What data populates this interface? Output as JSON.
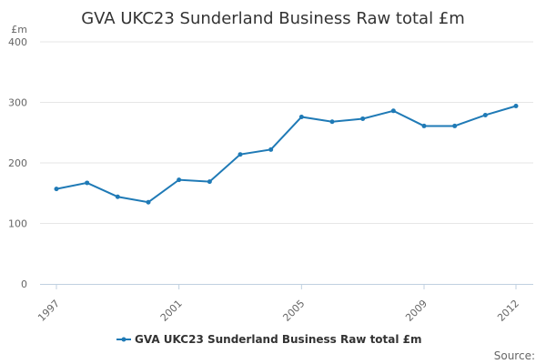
{
  "chart_data": {
    "type": "line",
    "title": "GVA UKC23 Sunderland Business Raw total £m",
    "unit_label": "£m",
    "xlabel": "",
    "ylabel": "",
    "ylim": [
      0,
      400
    ],
    "yticks": [
      0,
      100,
      200,
      300,
      400
    ],
    "xlim": [
      1997,
      2012
    ],
    "xticks": [
      1997,
      2001,
      2005,
      2009,
      2012
    ],
    "grid": true,
    "legend_position": "bottom",
    "source_label": "Source:",
    "series": [
      {
        "name": "GVA UKC23 Sunderland Business Raw total £m",
        "color": "#1f7ab6",
        "x": [
          1997,
          1998,
          1999,
          2000,
          2001,
          2002,
          2003,
          2004,
          2005,
          2006,
          2007,
          2008,
          2009,
          2010,
          2011,
          2012
        ],
        "values": [
          157,
          167,
          144,
          135,
          172,
          169,
          214,
          222,
          276,
          268,
          273,
          286,
          261,
          261,
          279,
          294
        ]
      }
    ]
  }
}
